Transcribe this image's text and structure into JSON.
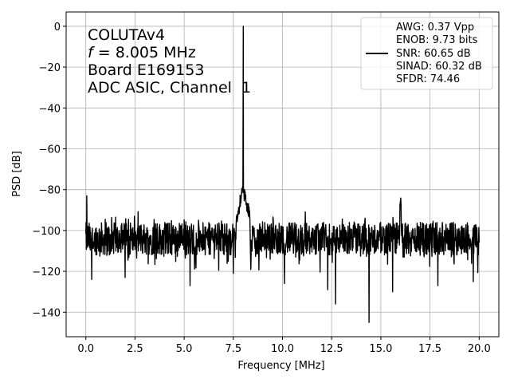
{
  "chart_data": {
    "type": "line",
    "xlabel": "Frequency [MHz]",
    "ylabel": "PSD [dB]",
    "xlim": [
      -1.0,
      21.0
    ],
    "ylim": [
      -152,
      7
    ],
    "xticks": [
      0.0,
      2.5,
      5.0,
      7.5,
      10.0,
      12.5,
      15.0,
      17.5,
      20.0
    ],
    "xtick_labels": [
      "0.0",
      "2.5",
      "5.0",
      "7.5",
      "10.0",
      "12.5",
      "15.0",
      "17.5",
      "20.0"
    ],
    "yticks": [
      0,
      -20,
      -40,
      -60,
      -80,
      -100,
      -120,
      -140
    ],
    "ytick_labels": [
      "0",
      "−20",
      "−40",
      "−60",
      "−80",
      "−100",
      "−120",
      "−140"
    ],
    "grid": true,
    "annotation": {
      "line1": "COLUTAv4",
      "line2_italic": "f",
      "line2_rest": " = 8.005 MHz",
      "line3": "Board E169153",
      "line4": "ADC ASIC, Channel  1"
    },
    "legend": {
      "placement": "top-right",
      "lines": [
        "AWG: 0.37 Vpp",
        "ENOB: 9.73 bits",
        "SNR: 60.65 dB",
        "SINAD: 60.32 dB",
        "SFDR: 74.46"
      ]
    },
    "series": [
      {
        "color": "#000000",
        "noise_floor_db": -104,
        "x_range": [
          0.0,
          20.0
        ],
        "features": [
          {
            "kind": "dc_spike",
            "x": 0.05,
            "y": -83
          },
          {
            "kind": "fundamental",
            "x": 8.005,
            "y": 0
          },
          {
            "kind": "skirt",
            "x": 8.0,
            "y": -80
          },
          {
            "kind": "harmonic",
            "x": 16.0,
            "y": -86
          },
          {
            "kind": "dip",
            "x": 14.4,
            "y": -145
          },
          {
            "kind": "dip",
            "x": 12.7,
            "y": -136
          },
          {
            "kind": "dip",
            "x": 12.3,
            "y": -129
          },
          {
            "kind": "dip",
            "x": 15.6,
            "y": -130
          },
          {
            "kind": "dip",
            "x": 19.7,
            "y": -125
          },
          {
            "kind": "dip",
            "x": 5.3,
            "y": -127
          },
          {
            "kind": "dip",
            "x": 7.5,
            "y": -121
          },
          {
            "kind": "dip",
            "x": 0.3,
            "y": -124
          },
          {
            "kind": "dip",
            "x": 10.1,
            "y": -126
          },
          {
            "kind": "dip",
            "x": 2.0,
            "y": -123
          },
          {
            "kind": "dip",
            "x": 17.9,
            "y": -127
          }
        ]
      }
    ]
  }
}
